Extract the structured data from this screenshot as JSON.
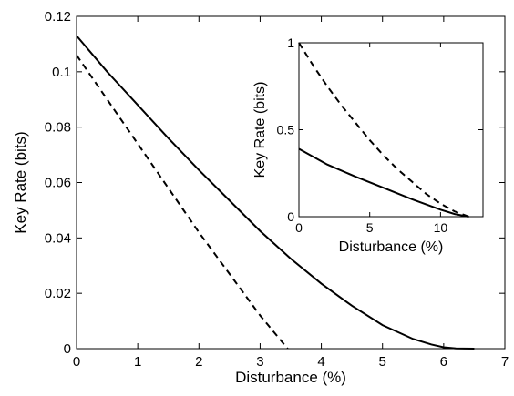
{
  "chart_data": [
    {
      "type": "line",
      "xlabel": "Disturbance (%)",
      "ylabel": "Key Rate (bits)",
      "xlim": [
        0,
        7
      ],
      "ylim": [
        0,
        0.12
      ],
      "xticks": [
        0,
        1,
        2,
        3,
        4,
        5,
        6,
        7
      ],
      "xtick_labels": [
        "0",
        "1",
        "2",
        "3",
        "4",
        "5",
        "6",
        "7"
      ],
      "yticks": [
        0,
        0.02,
        0.04,
        0.06,
        0.08,
        0.1,
        0.12
      ],
      "ytick_labels": [
        "0",
        "0.02",
        "0.04",
        "0.06",
        "0.08",
        "0.1",
        "0.12"
      ],
      "grid": false,
      "series": [
        {
          "style": "solid",
          "color": "#000000",
          "x": [
            0,
            0.5,
            1,
            1.5,
            2,
            2.5,
            3,
            3.5,
            4,
            4.5,
            5,
            5.5,
            5.8,
            6,
            6.2,
            6.5
          ],
          "y": [
            0.113,
            0.1,
            0.088,
            0.076,
            0.0645,
            0.0535,
            0.0425,
            0.0325,
            0.0235,
            0.0155,
            0.0085,
            0.0035,
            0.0015,
            0.0005,
            0.0001,
            0
          ]
        },
        {
          "style": "dashed",
          "color": "#000000",
          "x": [
            0,
            0.5,
            1,
            1.5,
            2,
            2.5,
            3,
            3.45
          ],
          "y": [
            0.106,
            0.09,
            0.074,
            0.058,
            0.042,
            0.027,
            0.012,
            0
          ]
        }
      ]
    },
    {
      "type": "line",
      "xlabel": "Disturbance (%)",
      "ylabel": "Key Rate (bits)",
      "xlim": [
        0,
        13
      ],
      "ylim": [
        0,
        1
      ],
      "xticks": [
        0,
        5,
        10
      ],
      "xtick_labels": [
        "0",
        "5",
        "10"
      ],
      "yticks": [
        0,
        0.5,
        1
      ],
      "ytick_labels": [
        "0",
        "0.5",
        "1"
      ],
      "grid": false,
      "series": [
        {
          "style": "solid",
          "color": "#000000",
          "x": [
            0,
            2,
            4,
            6,
            8,
            10,
            11,
            12
          ],
          "y": [
            0.39,
            0.3,
            0.23,
            0.165,
            0.1,
            0.04,
            0.015,
            0
          ]
        },
        {
          "style": "dashed",
          "color": "#000000",
          "x": [
            0,
            1,
            2,
            3,
            4,
            5,
            6,
            7,
            8,
            9,
            10,
            11,
            12
          ],
          "y": [
            1.0,
            0.87,
            0.75,
            0.64,
            0.54,
            0.44,
            0.35,
            0.27,
            0.2,
            0.13,
            0.075,
            0.03,
            0
          ]
        }
      ]
    }
  ]
}
